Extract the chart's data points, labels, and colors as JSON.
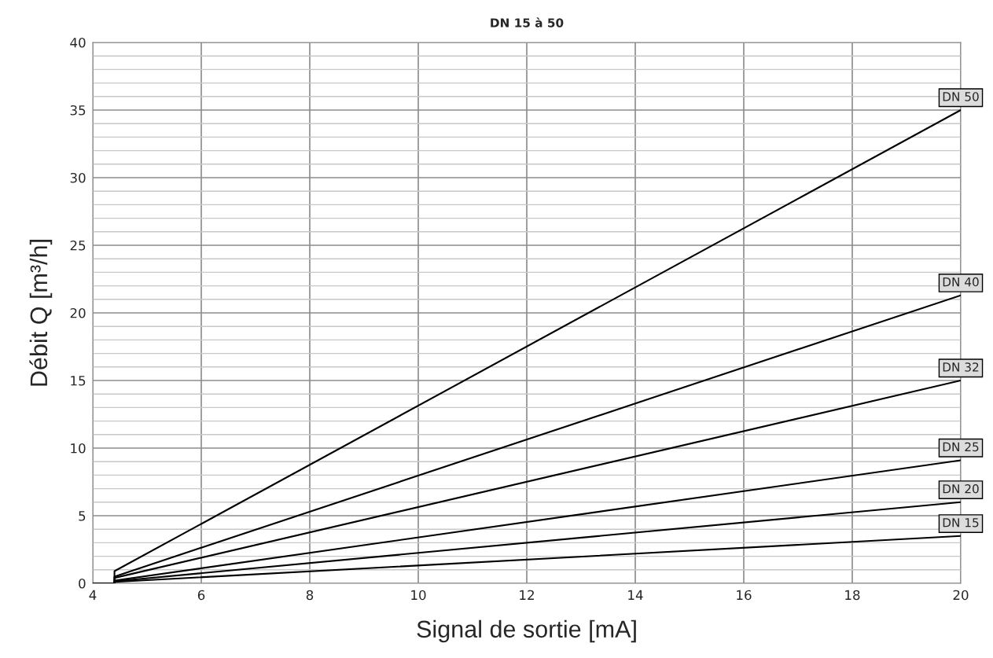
{
  "chart_data": {
    "type": "line",
    "title": "DN 15 à 50",
    "xlabel": "Signal de sortie [mA]",
    "ylabel": "Débit Q [m³/h]",
    "xlim": [
      4,
      20
    ],
    "xticks": [
      4,
      6,
      8,
      10,
      12,
      14,
      16,
      18,
      20
    ],
    "ylim": [
      0,
      40
    ],
    "yticks": [
      0,
      5,
      10,
      15,
      20,
      25,
      30,
      35,
      40
    ],
    "x": [
      4,
      4.4,
      4.4,
      20
    ],
    "grid": true,
    "legend": false,
    "marker": "none",
    "line_style": "solid",
    "series": [
      {
        "name": "DN 50",
        "color": "#000000",
        "values": [
          0,
          0,
          0.9,
          35
        ]
      },
      {
        "name": "DN 40",
        "color": "#000000",
        "values": [
          0,
          0,
          0.5,
          21.3
        ]
      },
      {
        "name": "DN 32",
        "color": "#000000",
        "values": [
          0,
          0,
          0.4,
          15
        ]
      },
      {
        "name": "DN 25",
        "color": "#000000",
        "values": [
          0,
          0,
          0.2,
          9.1
        ]
      },
      {
        "name": "DN 20",
        "color": "#000000",
        "values": [
          0,
          0,
          0.15,
          6
        ]
      },
      {
        "name": "DN 15",
        "color": "#000000",
        "values": [
          0,
          0,
          0.1,
          3.5
        ]
      }
    ]
  }
}
